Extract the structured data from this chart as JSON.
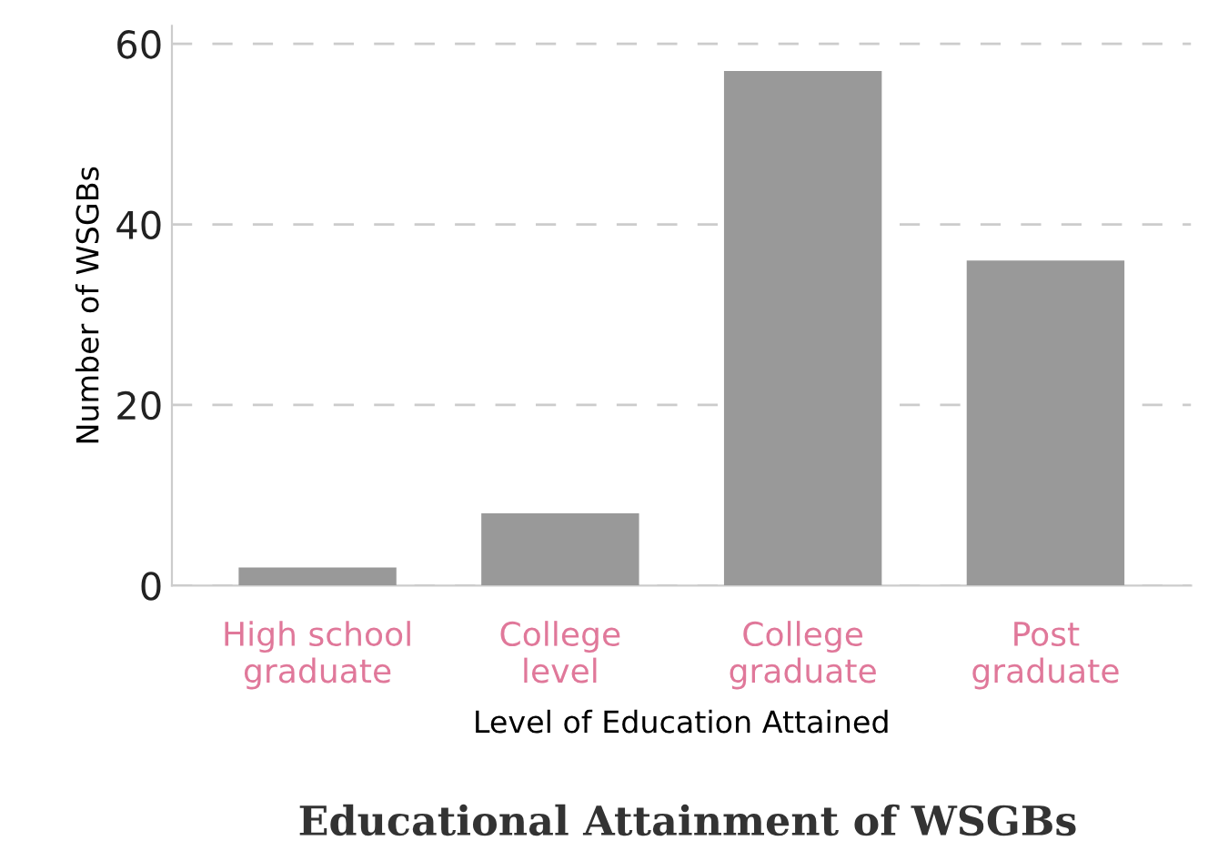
{
  "chart_data": {
    "type": "bar",
    "title": "Educational Attainment of WSGBs",
    "xlabel": "Level of Education Attained",
    "ylabel": "Number of WSGBs",
    "categories": [
      "High school\ngraduate",
      "College\nlevel",
      "College\ngraduate",
      "Post\ngraduate"
    ],
    "values": [
      2,
      8,
      57,
      36
    ],
    "color": "#999999",
    "ylim": [
      0,
      62
    ],
    "yticks": [
      0,
      20,
      40,
      60
    ],
    "grid": "y",
    "line_style": "dashed"
  }
}
